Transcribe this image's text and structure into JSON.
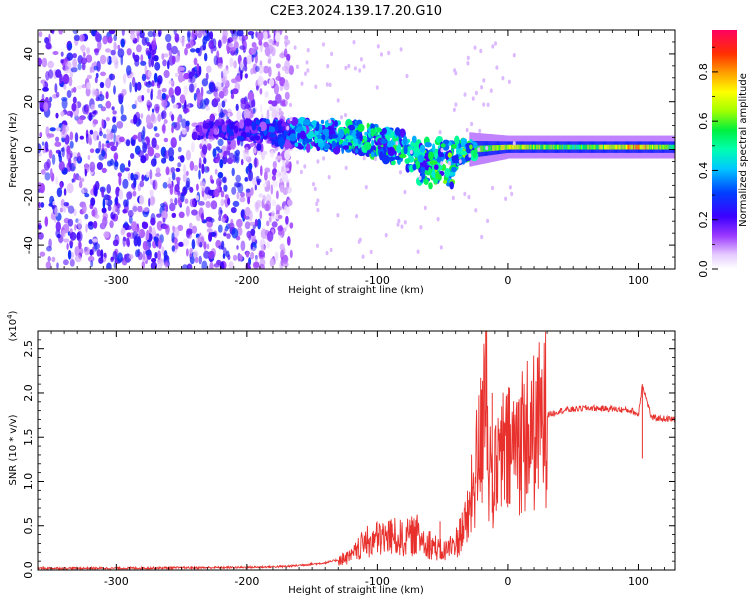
{
  "title": "C2E3.2024.139.17.20.G10",
  "top_panel": {
    "type": "heatmap",
    "xlabel": "Height of straight line (km)",
    "ylabel": "Frequency (Hz)",
    "xlim": [
      -360,
      128
    ],
    "ylim": [
      -50,
      50
    ],
    "x_ticks": [
      "-300",
      "-200",
      "-100",
      "0",
      "100"
    ],
    "x_tick_values": [
      -300,
      -200,
      -100,
      0,
      100
    ],
    "y_ticks": [
      "-40",
      "-20",
      "0",
      "20",
      "40"
    ],
    "y_tick_values": [
      -40,
      -20,
      0,
      20,
      40
    ],
    "colorbar": {
      "label": "Normalized spectral amplitude",
      "range": [
        0,
        0.97
      ],
      "ticks": [
        "0.0",
        "0.2",
        "0.4",
        "0.6",
        "0.8"
      ],
      "tick_values": [
        0.0,
        0.2,
        0.4,
        0.6,
        0.8
      ],
      "colormap": "rainbow-white"
    },
    "regions": {
      "broadband_noise": {
        "x_range": [
          -360,
          -175
        ],
        "freq_range": [
          -50,
          50
        ],
        "amplitude": [
          0.05,
          0.3
        ]
      },
      "signal_track": [
        {
          "x": -240,
          "freq": 8,
          "width_hz": 4,
          "amplitude": 0.25
        },
        {
          "x": -200,
          "freq": 8,
          "width_hz": 6,
          "amplitude": 0.3
        },
        {
          "x": -150,
          "freq": 6,
          "width_hz": 10,
          "amplitude": 0.45
        },
        {
          "x": -110,
          "freq": 5,
          "width_hz": 10,
          "amplitude": 0.55
        },
        {
          "x": -80,
          "freq": 0,
          "width_hz": 12,
          "amplitude": 0.55
        },
        {
          "x": -55,
          "freq": -3,
          "width_hz": 14,
          "amplitude": 0.6
        },
        {
          "x": -30,
          "freq": 0,
          "width_hz": 6,
          "amplitude": 0.6
        },
        {
          "x": 0,
          "freq": 1,
          "width_hz": 4,
          "amplitude": 0.75
        },
        {
          "x": 50,
          "freq": 1,
          "width_hz": 4,
          "amplitude": 0.6
        },
        {
          "x": 100,
          "freq": 1,
          "width_hz": 4,
          "amplitude": 0.85
        },
        {
          "x": 128,
          "freq": 1,
          "width_hz": 4,
          "amplitude": 0.6
        }
      ]
    }
  },
  "bottom_panel": {
    "type": "line",
    "xlabel": "Height of straight line (km)",
    "ylabel": "SNR (10 * v/v)",
    "y_multiplier": "(x10",
    "y_multiplier_exp": "4",
    "y_multiplier_close": ")",
    "xlim": [
      -360,
      128
    ],
    "ylim": [
      0,
      2.7
    ],
    "x_ticks": [
      "-300",
      "-200",
      "-100",
      "0",
      "100"
    ],
    "x_tick_values": [
      -300,
      -200,
      -100,
      0,
      100
    ],
    "y_ticks": [
      "0.0",
      "0.5",
      "1.0",
      "1.5",
      "2.0",
      "2.5"
    ],
    "y_tick_values": [
      0,
      0.5,
      1.0,
      1.5,
      2.0,
      2.5
    ],
    "series": [
      {
        "color": "#e8312d",
        "x": [
          -360,
          -300,
          -200,
          -170,
          -140,
          -120,
          -110,
          -100,
          -90,
          -80,
          -70,
          -60,
          -50,
          -40,
          -30,
          -25,
          -20,
          -17,
          -15,
          -10,
          -5,
          0,
          5,
          10,
          20,
          30,
          40,
          60,
          80,
          95,
          100,
          103,
          110,
          128
        ],
        "y": [
          0.02,
          0.02,
          0.03,
          0.04,
          0.08,
          0.15,
          0.3,
          0.35,
          0.38,
          0.35,
          0.4,
          0.3,
          0.2,
          0.3,
          0.6,
          1.1,
          1.5,
          2.7,
          1.2,
          1.0,
          1.3,
          1.3,
          1.4,
          1.5,
          1.55,
          1.75,
          1.8,
          1.83,
          1.82,
          1.8,
          1.75,
          2.1,
          1.72,
          1.7
        ]
      }
    ],
    "spikes": [
      {
        "x": -17,
        "y": 2.7
      },
      {
        "x": -12,
        "y": 2.0
      },
      {
        "x": 10,
        "y": 1.95
      },
      {
        "x": 103,
        "y": 2.1
      },
      {
        "x": -52,
        "y": 0.55
      },
      {
        "x": -35,
        "y": 0.65
      }
    ]
  }
}
